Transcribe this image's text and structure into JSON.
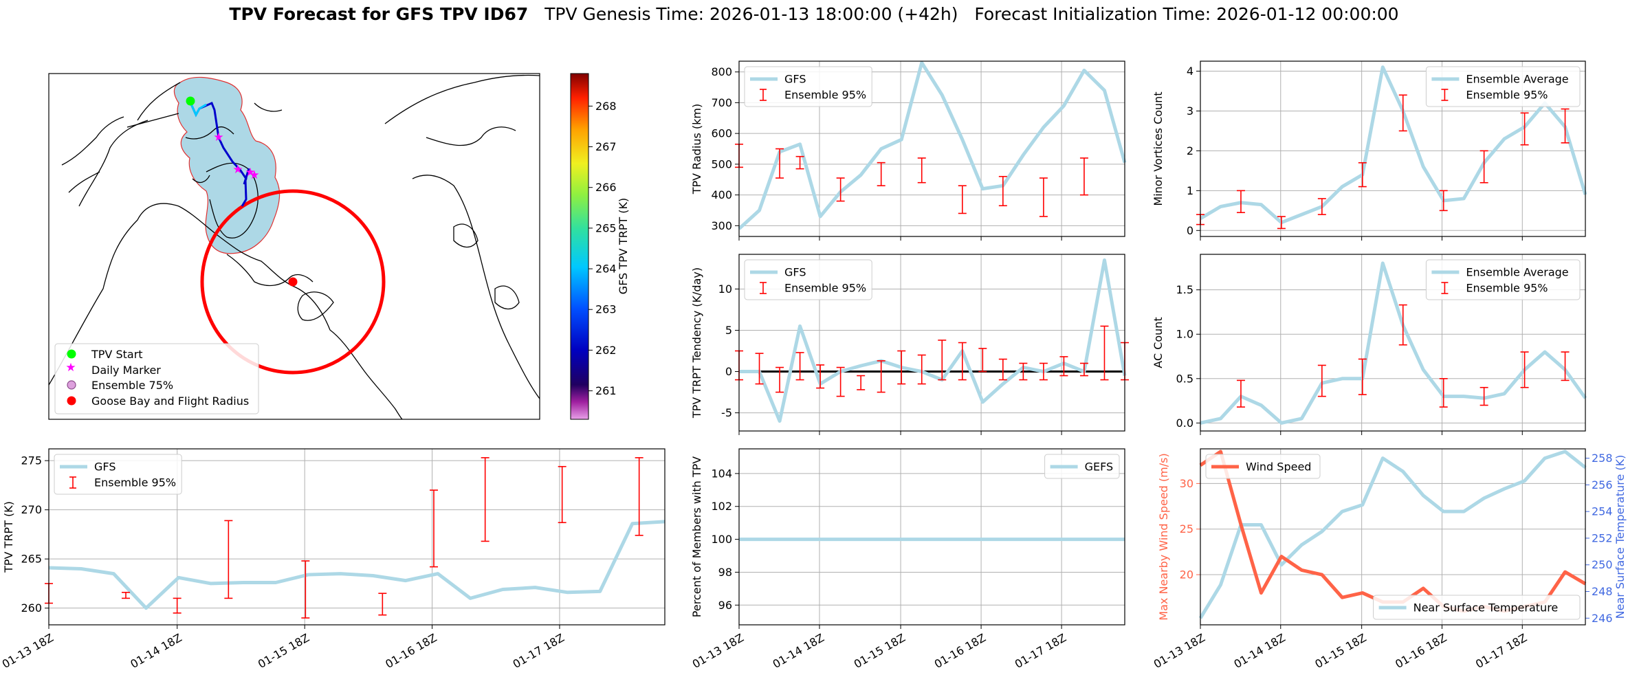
{
  "title": {
    "bold": "TPV Forecast for GFS TPV ID67",
    "genesis": "TPV Genesis Time: 2026-01-13 18:00:00 (+42h)",
    "init": "Forecast Initialization Time: 2026-01-12 00:00:00"
  },
  "colors": {
    "gfs": "#add8e6",
    "ensemble": "#ff0000",
    "wind": "#ff6347",
    "temp_axis": "#4169e1",
    "land": "#add8e6",
    "flight_radius": "#ff0000",
    "start": "#00ff00",
    "daily_marker": "#ff00ff"
  },
  "x_tick_labels": [
    "01-13 18Z",
    "01-14 18Z",
    "01-15 18Z",
    "01-16 18Z",
    "01-17 18Z"
  ],
  "colorbar": {
    "label": "GFS TPV TRPT (K)",
    "ticks": [
      261,
      262,
      263,
      264,
      265,
      266,
      267,
      268
    ],
    "range": [
      260.3,
      268.8
    ]
  },
  "map_legend": {
    "items": [
      {
        "label": "TPV Start",
        "icon": "green-circle"
      },
      {
        "label": "Daily Marker",
        "icon": "magenta-star"
      },
      {
        "label": "Ensemble 75%",
        "icon": "pink-circle"
      },
      {
        "label": "Goose Bay and Flight Radius",
        "icon": "red-circle"
      }
    ]
  },
  "chart_data": [
    {
      "id": "tpv_radius",
      "type": "line",
      "ylabel": "TPV Radius (km)",
      "ylim": [
        265,
        835
      ],
      "yticks": [
        300,
        400,
        500,
        600,
        700,
        800
      ],
      "legend": {
        "loc": "upper-left",
        "entries": [
          "GFS",
          "Ensemble 95%"
        ]
      },
      "grid": true,
      "line": [
        290,
        350,
        540,
        565,
        330,
        410,
        465,
        550,
        580,
        830,
        725,
        580,
        420,
        430,
        530,
        620,
        690,
        805,
        740,
        505
      ],
      "bars": [
        [
          0,
          490,
          565
        ],
        [
          2,
          455,
          550
        ],
        [
          3,
          485,
          525
        ],
        [
          5,
          380,
          455
        ],
        [
          7,
          430,
          505
        ],
        [
          9,
          440,
          520
        ],
        [
          11,
          340,
          430
        ],
        [
          13,
          365,
          460
        ],
        [
          15,
          330,
          455
        ],
        [
          17,
          400,
          520
        ]
      ]
    },
    {
      "id": "minor_vortices",
      "type": "line",
      "ylabel": "Minor Vortices Count",
      "ylim": [
        -0.15,
        4.25
      ],
      "yticks": [
        0,
        1,
        2,
        3,
        4
      ],
      "legend": {
        "loc": "upper-right",
        "entries": [
          "Ensemble Average",
          "Ensemble 95%"
        ]
      },
      "grid": true,
      "line": [
        0.3,
        0.6,
        0.7,
        0.65,
        0.2,
        0.4,
        0.6,
        1.1,
        1.4,
        4.1,
        3.0,
        1.6,
        0.75,
        0.8,
        1.7,
        2.3,
        2.6,
        3.2,
        2.6,
        0.9
      ],
      "bars": [
        [
          0,
          0.15,
          0.4
        ],
        [
          2,
          0.45,
          1.0
        ],
        [
          4,
          0.05,
          0.35
        ],
        [
          6,
          0.4,
          0.8
        ],
        [
          8,
          1.1,
          1.7
        ],
        [
          10,
          2.5,
          3.4
        ],
        [
          12,
          0.5,
          1.0
        ],
        [
          14,
          1.2,
          2.0
        ],
        [
          16,
          2.15,
          2.95
        ],
        [
          18,
          2.2,
          3.05
        ]
      ]
    },
    {
      "id": "trpt_tendency",
      "type": "line",
      "ylabel": "TPV TRPT Tendency (K/day)",
      "ylim": [
        -7.2,
        14.2
      ],
      "yticks": [
        -5,
        0,
        5,
        10
      ],
      "legend": {
        "loc": "upper-left",
        "entries": [
          "GFS",
          "Ensemble 95%"
        ]
      },
      "grid": true,
      "zero_line": true,
      "line": [
        0.0,
        0.0,
        -6.0,
        5.5,
        -1.5,
        0.0,
        0.7,
        1.3,
        0.5,
        0.0,
        -1.0,
        2.5,
        -3.7,
        -1.5,
        0.5,
        0.0,
        1.0,
        0.0,
        13.5,
        -0.5
      ],
      "bars": [
        [
          0,
          -1.0,
          2.5
        ],
        [
          1,
          -1.5,
          2.2
        ],
        [
          2,
          -2.5,
          0.5
        ],
        [
          3,
          -1.0,
          2.3
        ],
        [
          4,
          -2.0,
          0.8
        ],
        [
          5,
          -3.0,
          0.5
        ],
        [
          6,
          -2.2,
          -0.5
        ],
        [
          7,
          -2.5,
          1.3
        ],
        [
          8,
          -1.5,
          2.5
        ],
        [
          9,
          -1.5,
          2.0
        ],
        [
          10,
          -1.0,
          3.8
        ],
        [
          11,
          -1.0,
          3.5
        ],
        [
          12,
          0.0,
          2.8
        ],
        [
          13,
          -1.0,
          1.5
        ],
        [
          14,
          -1.0,
          1.0
        ],
        [
          15,
          -1.0,
          1.0
        ],
        [
          16,
          -0.5,
          1.8
        ],
        [
          17,
          -0.5,
          1.0
        ],
        [
          18,
          -1.0,
          5.5
        ],
        [
          19,
          -1.0,
          3.5
        ]
      ]
    },
    {
      "id": "ac_count",
      "type": "line",
      "ylabel": "AC Count",
      "ylim": [
        -0.09,
        1.9
      ],
      "yticks": [
        0.0,
        0.5,
        1.0,
        1.5
      ],
      "legend": {
        "loc": "upper-right",
        "entries": [
          "Ensemble Average",
          "Ensemble 95%"
        ]
      },
      "grid": true,
      "line": [
        0.0,
        0.05,
        0.3,
        0.2,
        0.0,
        0.05,
        0.45,
        0.5,
        0.5,
        1.8,
        1.1,
        0.6,
        0.3,
        0.3,
        0.28,
        0.33,
        0.6,
        0.8,
        0.6,
        0.28
      ],
      "bars": [
        [
          2,
          0.18,
          0.48
        ],
        [
          6,
          0.3,
          0.65
        ],
        [
          8,
          0.32,
          0.72
        ],
        [
          10,
          0.88,
          1.33
        ],
        [
          12,
          0.18,
          0.5
        ],
        [
          14,
          0.2,
          0.4
        ],
        [
          16,
          0.4,
          0.8
        ],
        [
          18,
          0.48,
          0.8
        ]
      ]
    },
    {
      "id": "tpv_trpt",
      "type": "line",
      "ylabel": "TPV TRPT (K)",
      "ylim": [
        258.3,
        276.2
      ],
      "yticks": [
        260,
        265,
        270,
        275
      ],
      "legend": {
        "loc": "upper-left",
        "entries": [
          "GFS",
          "Ensemble 95%"
        ]
      },
      "grid": true,
      "line": [
        264.1,
        264.0,
        263.5,
        260.0,
        263.1,
        262.5,
        262.6,
        262.6,
        263.4,
        263.5,
        263.3,
        262.8,
        263.5,
        261.0,
        261.9,
        262.1,
        261.6,
        261.7,
        268.6,
        268.8
      ],
      "bars": [
        [
          0,
          260.5,
          262.5
        ],
        [
          3,
          261.0,
          261.6
        ],
        [
          5,
          259.5,
          261.0
        ],
        [
          7,
          261.0,
          268.9
        ],
        [
          10,
          259.0,
          264.8
        ],
        [
          13,
          259.3,
          261.5
        ],
        [
          15,
          264.2,
          272.0
        ],
        [
          17,
          266.8,
          275.3
        ],
        [
          20,
          268.7,
          274.4
        ],
        [
          23,
          267.4,
          275.3
        ]
      ]
    },
    {
      "id": "percent_members",
      "type": "line",
      "ylabel": "Percent of Members with TPV",
      "ylim": [
        94.8,
        105.5
      ],
      "yticks": [
        96,
        98,
        100,
        102,
        104
      ],
      "legend": {
        "loc": "upper-right",
        "entries": [
          "GEFS"
        ]
      },
      "grid": true,
      "line": [
        100,
        100
      ]
    },
    {
      "id": "wind_temp",
      "type": "line",
      "ylabel": "Max Nearby Wind Speed (m/s)",
      "ylabel_right": "Near Surface Temperature (K)",
      "ylim": [
        14.5,
        33.8
      ],
      "yticks": [
        20,
        25,
        30
      ],
      "ylim_right": [
        245.5,
        258.7
      ],
      "yticks_right": [
        246,
        248,
        250,
        252,
        254,
        256,
        258
      ],
      "grid": true,
      "legend_left": {
        "loc": "upper-left",
        "entries": [
          "Wind Speed"
        ]
      },
      "legend_right": {
        "loc": "lower-right",
        "entries": [
          "Near Surface Temperature"
        ]
      },
      "series": [
        {
          "name": "Wind Speed",
          "values": [
            32.0,
            33.5,
            25.5,
            18.0,
            22.0,
            20.5,
            20.0,
            17.5,
            18.0,
            17.0,
            17.0,
            18.5,
            16.5,
            16.0,
            16.5,
            16.0,
            16.5,
            17.0,
            20.3,
            19.0
          ]
        },
        {
          "name": "Near Surface Temperature",
          "values": [
            246.0,
            248.5,
            253.0,
            253.0,
            250.0,
            251.5,
            252.5,
            254.0,
            254.5,
            258.0,
            257.0,
            255.2,
            254.0,
            254.0,
            255.0,
            255.7,
            256.3,
            258.0,
            258.5,
            257.3
          ]
        }
      ]
    }
  ]
}
